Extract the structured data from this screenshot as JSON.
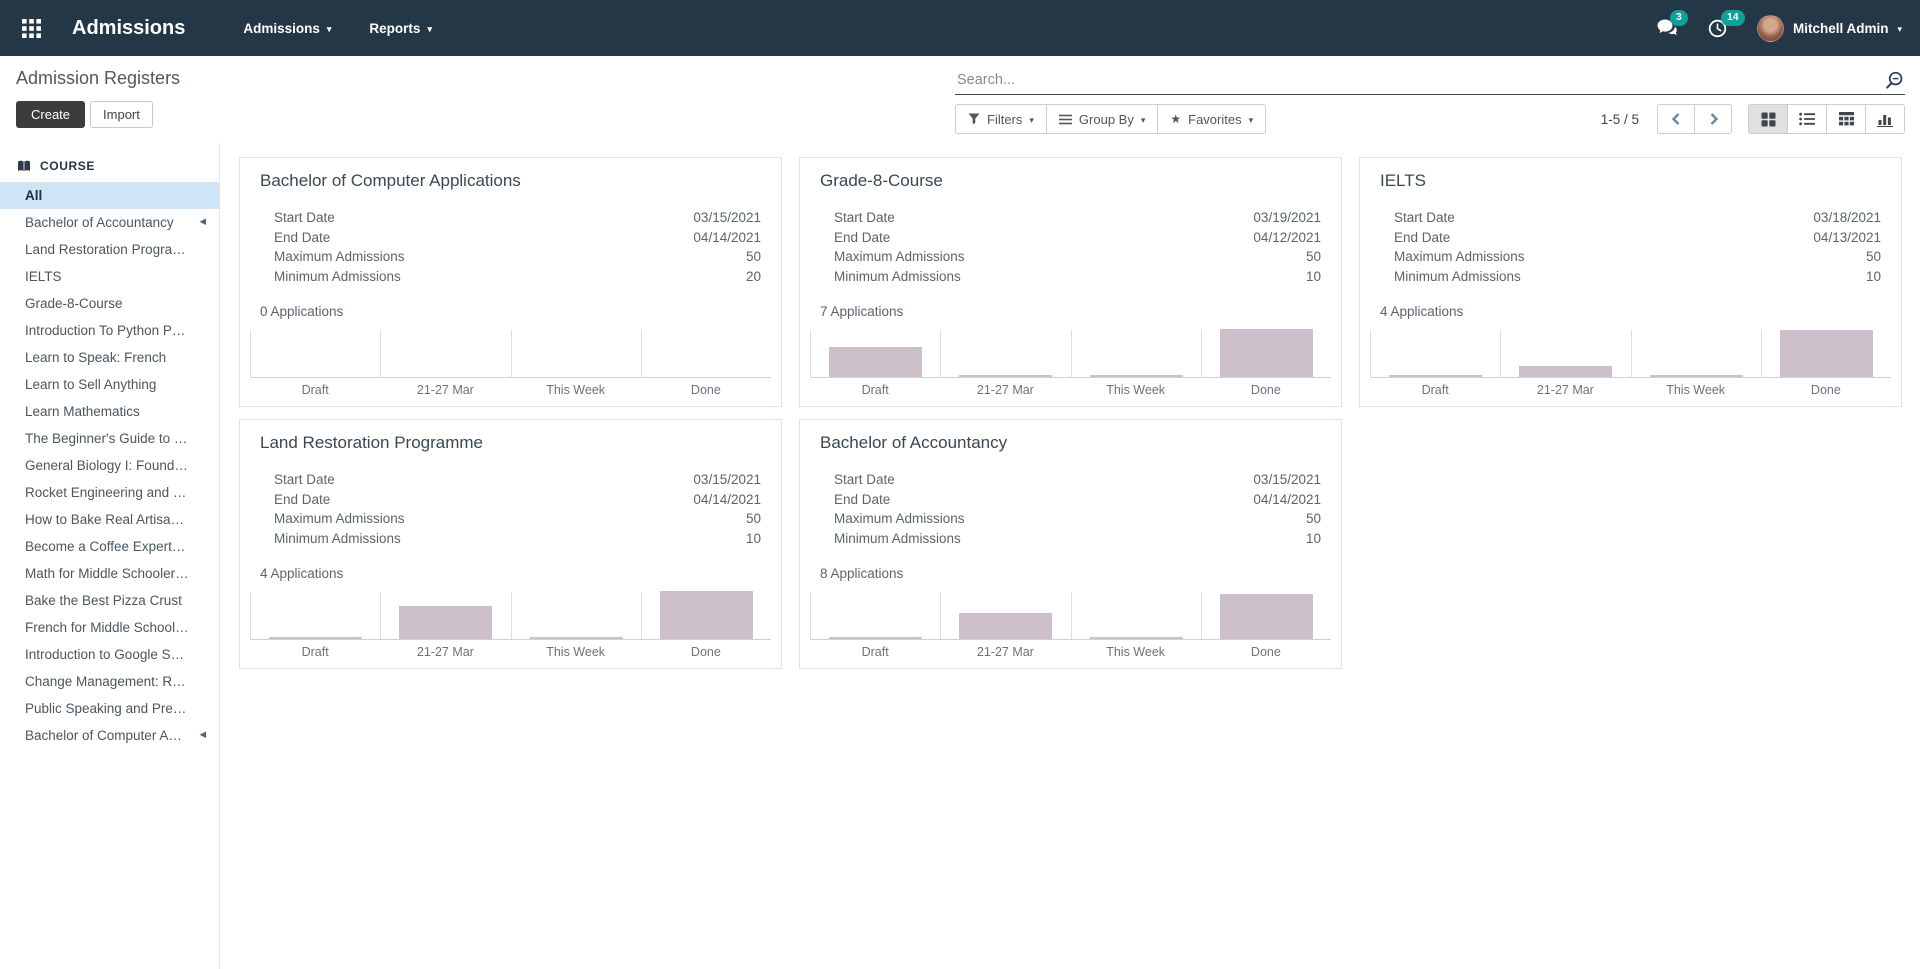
{
  "navbar": {
    "brand": "Admissions",
    "menu_admissions": "Admissions",
    "menu_reports": "Reports",
    "messages_badge": "3",
    "activities_badge": "14",
    "user_name": "Mitchell Admin"
  },
  "control_panel": {
    "title": "Admission Registers",
    "create_label": "Create",
    "import_label": "Import",
    "search_placeholder": "Search...",
    "filters_label": "Filters",
    "group_by_label": "Group By",
    "favorites_label": "Favorites",
    "pager_text": "1-5 / 5"
  },
  "sidebar": {
    "section_title": "COURSE",
    "items": [
      {
        "label": "All",
        "selected": true,
        "has_arrow": false
      },
      {
        "label": "Bachelor of Accountancy",
        "selected": false,
        "has_arrow": true
      },
      {
        "label": "Land Restoration Programme",
        "selected": false,
        "has_arrow": false
      },
      {
        "label": "IELTS",
        "selected": false,
        "has_arrow": false
      },
      {
        "label": "Grade-8-Course",
        "selected": false,
        "has_arrow": false
      },
      {
        "label": "Introduction To Python Progr…",
        "selected": false,
        "has_arrow": false
      },
      {
        "label": "Learn to Speak: French",
        "selected": false,
        "has_arrow": false
      },
      {
        "label": "Learn to Sell Anything",
        "selected": false,
        "has_arrow": false
      },
      {
        "label": "Learn Mathematics",
        "selected": false,
        "has_arrow": false
      },
      {
        "label": "The Beginner's Guide to Veg…",
        "selected": false,
        "has_arrow": false
      },
      {
        "label": "General Biology I: Foundatio…",
        "selected": false,
        "has_arrow": false
      },
      {
        "label": "Rocket Engineering and Inte…",
        "selected": false,
        "has_arrow": false
      },
      {
        "label": "How to Bake Real Artisan Br…",
        "selected": false,
        "has_arrow": false
      },
      {
        "label": "Become a Coffee Expert: Ho…",
        "selected": false,
        "has_arrow": false
      },
      {
        "label": "Math for Middle Schoolers: S…",
        "selected": false,
        "has_arrow": false
      },
      {
        "label": "Bake the Best Pizza Crust",
        "selected": false,
        "has_arrow": false
      },
      {
        "label": "French for Middle Schoolers",
        "selected": false,
        "has_arrow": false
      },
      {
        "label": "Introduction to Google Sheets",
        "selected": false,
        "has_arrow": false
      },
      {
        "label": "Change Management: Real …",
        "selected": false,
        "has_arrow": false
      },
      {
        "label": "Public Speaking and Present…",
        "selected": false,
        "has_arrow": false
      },
      {
        "label": "Bachelor of Computer Ap…",
        "selected": false,
        "has_arrow": true
      }
    ]
  },
  "chart_labels": [
    "Draft",
    "21-27 Mar",
    "This Week",
    "Done"
  ],
  "cards": [
    {
      "title": "Bachelor of Computer Applications",
      "fields": [
        {
          "label": "Start Date",
          "value": "03/15/2021"
        },
        {
          "label": "End Date",
          "value": "04/14/2021"
        },
        {
          "label": "Maximum Admissions",
          "value": "50"
        },
        {
          "label": "Minimum Admissions",
          "value": "20"
        }
      ],
      "applications": "0 Applications",
      "chart_heights": [
        0,
        0,
        0,
        0
      ]
    },
    {
      "title": "Grade-8-Course",
      "fields": [
        {
          "label": "Start Date",
          "value": "03/19/2021"
        },
        {
          "label": "End Date",
          "value": "04/12/2021"
        },
        {
          "label": "Maximum Admissions",
          "value": "50"
        },
        {
          "label": "Minimum Admissions",
          "value": "10"
        }
      ],
      "applications": "7 Applications",
      "chart_heights": [
        0.62,
        0.04,
        0.04,
        1
      ]
    },
    {
      "title": "IELTS",
      "fields": [
        {
          "label": "Start Date",
          "value": "03/18/2021"
        },
        {
          "label": "End Date",
          "value": "04/13/2021"
        },
        {
          "label": "Maximum Admissions",
          "value": "50"
        },
        {
          "label": "Minimum Admissions",
          "value": "10"
        }
      ],
      "applications": "4 Applications",
      "chart_heights": [
        0.04,
        0.22,
        0.04,
        0.98
      ]
    },
    {
      "title": "Land Restoration Programme",
      "fields": [
        {
          "label": "Start Date",
          "value": "03/15/2021"
        },
        {
          "label": "End Date",
          "value": "04/14/2021"
        },
        {
          "label": "Maximum Admissions",
          "value": "50"
        },
        {
          "label": "Minimum Admissions",
          "value": "10"
        }
      ],
      "applications": "4 Applications",
      "chart_heights": [
        0.04,
        0.68,
        0.04,
        1
      ]
    },
    {
      "title": "Bachelor of Accountancy",
      "fields": [
        {
          "label": "Start Date",
          "value": "03/15/2021"
        },
        {
          "label": "End Date",
          "value": "04/14/2021"
        },
        {
          "label": "Maximum Admissions",
          "value": "50"
        },
        {
          "label": "Minimum Admissions",
          "value": "10"
        }
      ],
      "applications": "8 Applications",
      "chart_heights": [
        0.04,
        0.55,
        0.04,
        0.93
      ]
    }
  ],
  "icons": {
    "apps": "grid-3x3",
    "messages": "chat-bubbles",
    "activities": "clock",
    "user_caret": "caret-down",
    "search": "magnifier",
    "filters": "funnel",
    "group_by": "horizontal-lines",
    "favorites": "star",
    "pager_previous": "chevron-left",
    "pager_next": "chevron-right",
    "views": [
      "kanban-grid",
      "list",
      "pivot-table",
      "bar-graph"
    ],
    "course_section": "book",
    "collapse": "left-triangle"
  },
  "colors": {
    "navbar_bg": "#243746",
    "badge": "#10a09a",
    "bar_fill": "#cec0ca",
    "selected_item_bg": "#cfe4f5",
    "create_button_bg": "#3c3c3c"
  }
}
